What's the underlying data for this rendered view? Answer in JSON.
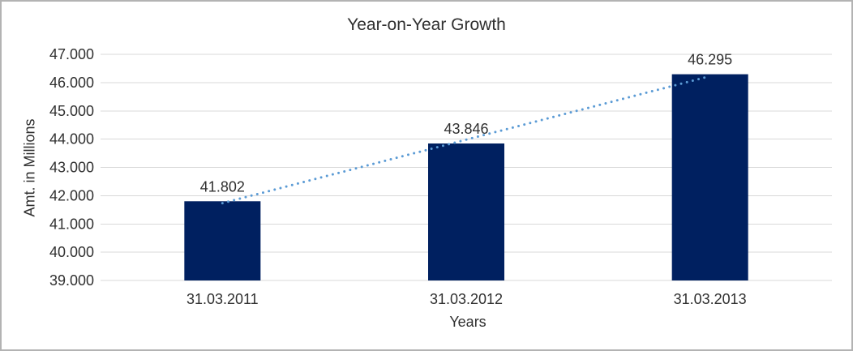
{
  "frame": {
    "background_color": "#ffffff",
    "border_color": "#b3b3b3"
  },
  "chart_data": {
    "type": "bar",
    "title": "Year-on-Year Growth",
    "xlabel": "Years",
    "ylabel": "Amt. in Millions",
    "categories": [
      "31.03.2011",
      "31.03.2012",
      "31.03.2013"
    ],
    "values": [
      41802,
      43846,
      46295
    ],
    "value_labels": [
      "41.802",
      "43.846",
      "46.295"
    ],
    "ylim": [
      39000,
      47000
    ],
    "y_tick_step": 1000,
    "y_tick_labels": [
      "39.000",
      "40.000",
      "41.000",
      "42.000",
      "43.000",
      "44.000",
      "45.000",
      "46.000",
      "47.000"
    ],
    "grid": true,
    "legend": false,
    "bar_color": "#002060",
    "gridline_color": "#d9d9d9",
    "text_color": "#303030",
    "trendline": {
      "type": "linear",
      "style": "dotted",
      "color": "#5b9bd5"
    }
  }
}
